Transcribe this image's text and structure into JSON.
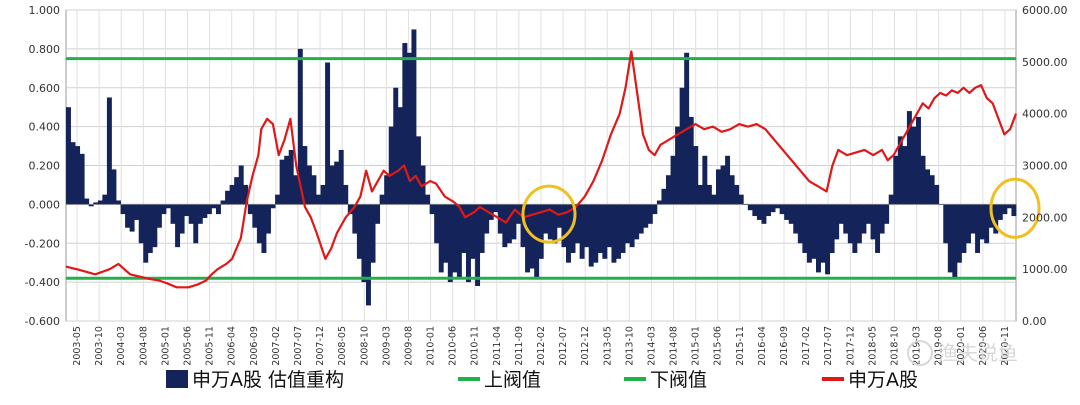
{
  "chart_data": {
    "type": "bar+line",
    "x_labels": [
      "2003-05",
      "2003-10",
      "2004-03",
      "2004-08",
      "2005-01",
      "2005-06",
      "2005-11",
      "2006-04",
      "2006-09",
      "2007-02",
      "2007-07",
      "2007-12",
      "2008-05",
      "2008-10",
      "2009-03",
      "2009-08",
      "2010-01",
      "2010-06",
      "2010-11",
      "2011-04",
      "2011-09",
      "2012-02",
      "2012-07",
      "2012-12",
      "2013-05",
      "2013-10",
      "2014-03",
      "2014-08",
      "2015-01",
      "2015-06",
      "2015-11",
      "2016-04",
      "2016-09",
      "2017-02",
      "2017-07",
      "2017-12",
      "2018-05",
      "2018-10",
      "2019-03",
      "2019-08",
      "2020-01",
      "2020-06",
      "2020-11"
    ],
    "left_axis": {
      "min": -0.6,
      "max": 1.0,
      "ticks": [
        "-0.600",
        "-0.400",
        "-0.200",
        "0.000",
        "0.200",
        "0.400",
        "0.600",
        "0.800",
        "1.000"
      ]
    },
    "right_axis": {
      "min": 0,
      "max": 6000,
      "ticks": [
        "0.00",
        "1000.00",
        "2000.00",
        "3000.00",
        "4000.00",
        "5000.00",
        "6000.00"
      ]
    },
    "thresholds": {
      "upper": 0.75,
      "lower": -0.38
    },
    "bar_series": {
      "name": "申万A股 估值重构",
      "color": "#14245a",
      "keyframes": [
        [
          0,
          0.5
        ],
        [
          1,
          0.32
        ],
        [
          2,
          0.3
        ],
        [
          3,
          0.26
        ],
        [
          4,
          0.03
        ],
        [
          5,
          -0.01
        ],
        [
          6,
          0.01
        ],
        [
          7,
          0.02
        ],
        [
          8,
          0.05
        ],
        [
          9,
          0.55
        ],
        [
          10,
          0.18
        ],
        [
          11,
          0.02
        ],
        [
          12,
          -0.05
        ],
        [
          13,
          -0.12
        ],
        [
          14,
          -0.14
        ],
        [
          15,
          -0.08
        ],
        [
          16,
          -0.2
        ],
        [
          17,
          -0.3
        ],
        [
          18,
          -0.25
        ],
        [
          19,
          -0.22
        ],
        [
          20,
          -0.12
        ],
        [
          21,
          -0.05
        ],
        [
          22,
          -0.02
        ],
        [
          23,
          -0.1
        ],
        [
          24,
          -0.22
        ],
        [
          25,
          -0.15
        ],
        [
          26,
          -0.06
        ],
        [
          27,
          -0.1
        ],
        [
          28,
          -0.2
        ],
        [
          29,
          -0.1
        ],
        [
          30,
          -0.07
        ],
        [
          31,
          -0.05
        ],
        [
          32,
          -0.02
        ],
        [
          33,
          -0.05
        ],
        [
          34,
          0.02
        ],
        [
          35,
          0.07
        ],
        [
          36,
          0.1
        ],
        [
          37,
          0.14
        ],
        [
          38,
          0.2
        ],
        [
          39,
          0.1
        ],
        [
          40,
          -0.05
        ],
        [
          41,
          -0.12
        ],
        [
          42,
          -0.2
        ],
        [
          43,
          -0.25
        ],
        [
          44,
          -0.15
        ],
        [
          45,
          -0.02
        ],
        [
          46,
          0.05
        ],
        [
          47,
          0.23
        ],
        [
          48,
          0.25
        ],
        [
          49,
          0.28
        ],
        [
          50,
          0.15
        ],
        [
          51,
          0.8
        ],
        [
          52,
          0.3
        ],
        [
          53,
          0.2
        ],
        [
          54,
          0.15
        ],
        [
          55,
          0.05
        ],
        [
          56,
          0.1
        ],
        [
          57,
          0.73
        ],
        [
          58,
          0.2
        ],
        [
          59,
          0.22
        ],
        [
          60,
          0.28
        ],
        [
          61,
          0.1
        ],
        [
          62,
          -0.05
        ],
        [
          63,
          -0.15
        ],
        [
          64,
          -0.28
        ],
        [
          65,
          -0.4
        ],
        [
          66,
          -0.52
        ],
        [
          67,
          -0.3
        ],
        [
          68,
          -0.1
        ],
        [
          69,
          0.05
        ],
        [
          70,
          0.15
        ],
        [
          71,
          0.4
        ],
        [
          72,
          0.6
        ],
        [
          73,
          0.5
        ],
        [
          74,
          0.83
        ],
        [
          75,
          0.78
        ],
        [
          76,
          0.9
        ],
        [
          77,
          0.35
        ],
        [
          78,
          0.2
        ],
        [
          79,
          0.05
        ],
        [
          80,
          -0.05
        ],
        [
          81,
          -0.2
        ],
        [
          82,
          -0.35
        ],
        [
          83,
          -0.3
        ],
        [
          84,
          -0.4
        ],
        [
          85,
          -0.35
        ],
        [
          86,
          -0.38
        ],
        [
          87,
          -0.25
        ],
        [
          88,
          -0.4
        ],
        [
          89,
          -0.28
        ],
        [
          90,
          -0.42
        ],
        [
          91,
          -0.25
        ],
        [
          92,
          -0.15
        ],
        [
          93,
          -0.08
        ],
        [
          94,
          -0.04
        ],
        [
          95,
          -0.15
        ],
        [
          96,
          -0.22
        ],
        [
          97,
          -0.2
        ],
        [
          98,
          -0.18
        ],
        [
          99,
          -0.1
        ],
        [
          100,
          -0.22
        ],
        [
          101,
          -0.35
        ],
        [
          102,
          -0.33
        ],
        [
          103,
          -0.38
        ],
        [
          104,
          -0.28
        ],
        [
          105,
          -0.15
        ],
        [
          106,
          -0.18
        ],
        [
          107,
          -0.2
        ],
        [
          108,
          -0.12
        ],
        [
          109,
          -0.22
        ],
        [
          110,
          -0.3
        ],
        [
          111,
          -0.25
        ],
        [
          112,
          -0.2
        ],
        [
          113,
          -0.28
        ],
        [
          114,
          -0.22
        ],
        [
          115,
          -0.32
        ],
        [
          116,
          -0.3
        ],
        [
          117,
          -0.25
        ],
        [
          118,
          -0.28
        ],
        [
          119,
          -0.22
        ],
        [
          120,
          -0.3
        ],
        [
          121,
          -0.28
        ],
        [
          122,
          -0.25
        ],
        [
          123,
          -0.2
        ],
        [
          124,
          -0.22
        ],
        [
          125,
          -0.18
        ],
        [
          126,
          -0.15
        ],
        [
          127,
          -0.12
        ],
        [
          128,
          -0.1
        ],
        [
          129,
          -0.05
        ],
        [
          130,
          0.02
        ],
        [
          131,
          0.08
        ],
        [
          132,
          0.15
        ],
        [
          133,
          0.25
        ],
        [
          134,
          0.4
        ],
        [
          135,
          0.6
        ],
        [
          136,
          0.78
        ],
        [
          137,
          0.45
        ],
        [
          138,
          0.3
        ],
        [
          139,
          0.1
        ],
        [
          140,
          0.25
        ],
        [
          141,
          0.1
        ],
        [
          142,
          0.05
        ],
        [
          143,
          0.18
        ],
        [
          144,
          0.2
        ],
        [
          145,
          0.25
        ],
        [
          146,
          0.15
        ],
        [
          147,
          0.1
        ],
        [
          148,
          0.05
        ],
        [
          149,
          0.0
        ],
        [
          150,
          -0.03
        ],
        [
          151,
          -0.06
        ],
        [
          152,
          -0.08
        ],
        [
          153,
          -0.1
        ],
        [
          154,
          -0.06
        ],
        [
          155,
          -0.04
        ],
        [
          156,
          -0.02
        ],
        [
          157,
          -0.05
        ],
        [
          158,
          -0.08
        ],
        [
          159,
          -0.1
        ],
        [
          160,
          -0.15
        ],
        [
          161,
          -0.2
        ],
        [
          162,
          -0.25
        ],
        [
          163,
          -0.3
        ],
        [
          164,
          -0.28
        ],
        [
          165,
          -0.35
        ],
        [
          166,
          -0.3
        ],
        [
          167,
          -0.36
        ],
        [
          168,
          -0.25
        ],
        [
          169,
          -0.18
        ],
        [
          170,
          -0.1
        ],
        [
          171,
          -0.15
        ],
        [
          172,
          -0.2
        ],
        [
          173,
          -0.25
        ],
        [
          174,
          -0.2
        ],
        [
          175,
          -0.15
        ],
        [
          176,
          -0.1
        ],
        [
          177,
          -0.18
        ],
        [
          178,
          -0.25
        ],
        [
          179,
          -0.15
        ],
        [
          180,
          -0.1
        ],
        [
          181,
          0.05
        ],
        [
          182,
          0.25
        ],
        [
          183,
          0.35
        ],
        [
          184,
          0.3
        ],
        [
          185,
          0.48
        ],
        [
          186,
          0.4
        ],
        [
          187,
          0.45
        ],
        [
          188,
          0.25
        ],
        [
          189,
          0.18
        ],
        [
          190,
          0.15
        ],
        [
          191,
          0.1
        ],
        [
          192,
          0.0
        ],
        [
          193,
          -0.2
        ],
        [
          194,
          -0.35
        ],
        [
          195,
          -0.38
        ],
        [
          196,
          -0.3
        ],
        [
          197,
          -0.25
        ],
        [
          198,
          -0.2
        ],
        [
          199,
          -0.15
        ],
        [
          200,
          -0.25
        ],
        [
          201,
          -0.18
        ],
        [
          202,
          -0.2
        ],
        [
          203,
          -0.12
        ],
        [
          204,
          -0.15
        ],
        [
          205,
          -0.08
        ],
        [
          206,
          -0.05
        ],
        [
          207,
          -0.02
        ],
        [
          208,
          -0.06
        ]
      ]
    },
    "line_series": {
      "name": "申万A股",
      "color": "#e01818",
      "keyframes": [
        [
          0,
          1050
        ],
        [
          5,
          980
        ],
        [
          10,
          900
        ],
        [
          15,
          1000
        ],
        [
          18,
          1100
        ],
        [
          22,
          900
        ],
        [
          28,
          820
        ],
        [
          32,
          780
        ],
        [
          35,
          720
        ],
        [
          38,
          650
        ],
        [
          42,
          650
        ],
        [
          45,
          700
        ],
        [
          48,
          780
        ],
        [
          50,
          900
        ],
        [
          52,
          1000
        ],
        [
          55,
          1100
        ],
        [
          57,
          1200
        ],
        [
          60,
          1600
        ],
        [
          62,
          2300
        ],
        [
          64,
          2800
        ],
        [
          66,
          3200
        ],
        [
          67,
          3700
        ],
        [
          69,
          3900
        ],
        [
          71,
          3800
        ],
        [
          73,
          3200
        ],
        [
          75,
          3500
        ],
        [
          77,
          3900
        ],
        [
          79,
          3000
        ],
        [
          82,
          2200
        ],
        [
          84,
          2000
        ],
        [
          86,
          1700
        ],
        [
          89,
          1200
        ],
        [
          91,
          1400
        ],
        [
          93,
          1700
        ],
        [
          96,
          2000
        ],
        [
          99,
          2200
        ],
        [
          101,
          2400
        ],
        [
          103,
          2900
        ],
        [
          105,
          2500
        ],
        [
          107,
          2700
        ],
        [
          109,
          2900
        ],
        [
          111,
          2800
        ],
        [
          114,
          2900
        ],
        [
          116,
          3000
        ],
        [
          118,
          2700
        ],
        [
          120,
          2800
        ],
        [
          122,
          2600
        ],
        [
          125,
          2700
        ],
        [
          127,
          2650
        ],
        [
          130,
          2400
        ],
        [
          133,
          2300
        ],
        [
          135,
          2200
        ],
        [
          137,
          2000
        ],
        [
          140,
          2100
        ],
        [
          142,
          2200
        ],
        [
          145,
          2100
        ],
        [
          148,
          2000
        ],
        [
          151,
          1900
        ],
        [
          154,
          2150
        ],
        [
          157,
          2000
        ],
        [
          160,
          2050
        ],
        [
          163,
          2100
        ],
        [
          166,
          2150
        ],
        [
          169,
          2050
        ],
        [
          172,
          2100
        ],
        [
          175,
          2200
        ],
        [
          178,
          2400
        ],
        [
          181,
          2700
        ],
        [
          184,
          3100
        ],
        [
          187,
          3600
        ],
        [
          190,
          4000
        ],
        [
          192,
          4500
        ],
        [
          194,
          5200
        ],
        [
          196,
          4400
        ],
        [
          198,
          3600
        ],
        [
          200,
          3300
        ],
        [
          202,
          3200
        ],
        [
          204,
          3400
        ],
        [
          207,
          3500
        ],
        [
          210,
          3600
        ],
        [
          213,
          3700
        ],
        [
          216,
          3800
        ],
        [
          219,
          3700
        ],
        [
          222,
          3750
        ],
        [
          225,
          3650
        ],
        [
          228,
          3700
        ],
        [
          231,
          3800
        ],
        [
          234,
          3750
        ],
        [
          237,
          3800
        ],
        [
          240,
          3700
        ],
        [
          243,
          3500
        ],
        [
          246,
          3300
        ],
        [
          249,
          3100
        ],
        [
          252,
          2900
        ],
        [
          255,
          2700
        ],
        [
          258,
          2600
        ],
        [
          261,
          2500
        ],
        [
          263,
          3000
        ],
        [
          265,
          3300
        ],
        [
          268,
          3200
        ],
        [
          271,
          3250
        ],
        [
          274,
          3300
        ],
        [
          277,
          3200
        ],
        [
          280,
          3300
        ],
        [
          282,
          3100
        ],
        [
          284,
          3200
        ],
        [
          286,
          3400
        ],
        [
          288,
          3600
        ],
        [
          290,
          3800
        ],
        [
          292,
          4000
        ],
        [
          294,
          4200
        ],
        [
          296,
          4100
        ],
        [
          298,
          4300
        ],
        [
          300,
          4400
        ],
        [
          302,
          4350
        ],
        [
          304,
          4450
        ],
        [
          306,
          4400
        ],
        [
          308,
          4500
        ],
        [
          310,
          4400
        ],
        [
          312,
          4500
        ],
        [
          314,
          4550
        ],
        [
          316,
          4300
        ],
        [
          318,
          4200
        ],
        [
          320,
          3900
        ],
        [
          322,
          3600
        ],
        [
          324,
          3700
        ],
        [
          326,
          4000
        ]
      ]
    },
    "legend": [
      {
        "name": "申万A股 估值重构",
        "kind": "bar",
        "color": "#14245a"
      },
      {
        "name": "上阀值",
        "kind": "line",
        "color": "#22b04a"
      },
      {
        "name": "下阀值",
        "kind": "line",
        "color": "#22b04a"
      },
      {
        "name": "申万A股",
        "kind": "line",
        "color": "#e01818"
      }
    ],
    "annotations": [
      {
        "type": "circle",
        "color": "#f0c020",
        "near_x": "2012-02"
      },
      {
        "type": "circle",
        "color": "#f0c020",
        "near_x": "2020-11"
      }
    ],
    "grid": true
  },
  "watermark": {
    "text": "渔夫说鱼"
  }
}
